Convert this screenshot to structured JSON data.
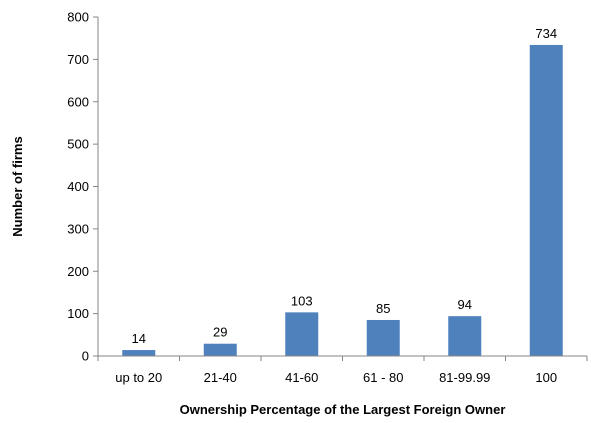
{
  "chart_data": {
    "type": "bar",
    "title": "",
    "xlabel": "Ownership Percentage of the Largest Foreign Owner",
    "ylabel": "Number of firms",
    "categories": [
      "up to 20",
      "21-40",
      "41-60",
      "61 - 80",
      "81-99.99",
      "100"
    ],
    "values": [
      14,
      29,
      103,
      85,
      94,
      734
    ],
    "data_labels": [
      "14",
      "29",
      "103",
      "85",
      "94",
      "734"
    ],
    "ylim": [
      0,
      800
    ],
    "yticks": [
      0,
      100,
      200,
      300,
      400,
      500,
      600,
      700,
      800
    ],
    "ytick_labels": [
      "0",
      "100",
      "200",
      "300",
      "400",
      "500",
      "600",
      "700",
      "800"
    ],
    "grid": false,
    "legend": "none",
    "bar_color": "#4F81BD"
  }
}
